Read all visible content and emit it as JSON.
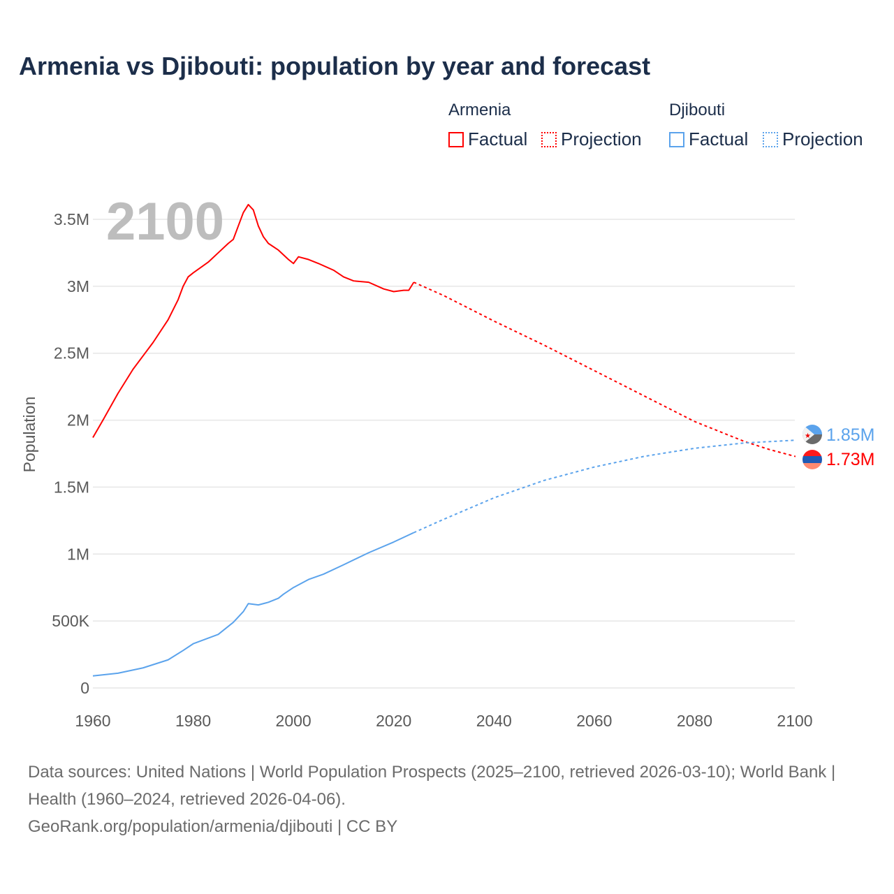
{
  "title": "Armenia vs Djibouti: population by year and forecast",
  "legend": {
    "groups": [
      {
        "name": "Armenia",
        "factual": "Factual",
        "projection": "Projection",
        "color": "#ff0000"
      },
      {
        "name": "Djibouti",
        "factual": "Factual",
        "projection": "Projection",
        "color": "#5ba3ec"
      }
    ]
  },
  "year_overlay": "2100",
  "end_labels": {
    "djibouti": "1.85M",
    "armenia": "1.73M"
  },
  "source": {
    "line1": "Data sources: United Nations | World Population Prospects (2025–2100, retrieved 2026-03-10); World Bank | Health (1960–2024, retrieved 2026-04-06).",
    "line2": "GeoRank.org/population/armenia/djibouti | CC BY"
  },
  "chart_data": {
    "type": "line",
    "title": "Armenia vs Djibouti: population by year and forecast",
    "xlabel": "",
    "ylabel": "Population",
    "xlim": [
      1960,
      2100
    ],
    "ylim": [
      0,
      3500000
    ],
    "xticks": [
      1960,
      1980,
      2000,
      2020,
      2040,
      2060,
      2080,
      2100
    ],
    "xtick_labels": [
      "1960",
      "1980",
      "2000",
      "2020",
      "2040",
      "2060",
      "2080",
      "2100"
    ],
    "yticks": [
      0,
      500000,
      1000000,
      1500000,
      2000000,
      2500000,
      3000000,
      3500000
    ],
    "ytick_labels": [
      "0",
      "500K",
      "1M",
      "1.5M",
      "2M",
      "2.5M",
      "3M",
      "3.5M"
    ],
    "grid": true,
    "legend_position": "top-right",
    "series": [
      {
        "name": "Armenia Factual",
        "style": "solid",
        "color": "#ff0000",
        "x": [
          1960,
          1962,
          1965,
          1968,
          1970,
          1972,
          1975,
          1977,
          1978,
          1979,
          1980,
          1983,
          1985,
          1987,
          1988,
          1989,
          1990,
          1991,
          1992,
          1993,
          1994,
          1995,
          1997,
          1999,
          2000,
          2001,
          2003,
          2005,
          2008,
          2010,
          2012,
          2015,
          2018,
          2020,
          2022,
          2023,
          2024
        ],
        "y": [
          1.87,
          2.0,
          2.2,
          2.38,
          2.48,
          2.58,
          2.75,
          2.9,
          3.0,
          3.07,
          3.1,
          3.18,
          3.25,
          3.32,
          3.35,
          3.45,
          3.55,
          3.61,
          3.57,
          3.45,
          3.37,
          3.32,
          3.27,
          3.2,
          3.17,
          3.22,
          3.2,
          3.17,
          3.12,
          3.07,
          3.04,
          3.03,
          2.98,
          2.96,
          2.97,
          2.97,
          3.03
        ]
      },
      {
        "name": "Armenia Projection",
        "style": "dotted",
        "color": "#ff0000",
        "x": [
          2024,
          2030,
          2040,
          2050,
          2060,
          2070,
          2080,
          2090,
          2095,
          2100
        ],
        "y": [
          3.03,
          2.93,
          2.74,
          2.56,
          2.37,
          2.18,
          1.99,
          1.84,
          1.78,
          1.73
        ]
      },
      {
        "name": "Djibouti Factual",
        "style": "solid",
        "color": "#5ba3ec",
        "x": [
          1960,
          1965,
          1970,
          1975,
          1978,
          1980,
          1985,
          1988,
          1990,
          1991,
          1993,
          1995,
          1997,
          1998,
          2000,
          2003,
          2006,
          2010,
          2015,
          2020,
          2024
        ],
        "y": [
          0.09,
          0.11,
          0.15,
          0.21,
          0.28,
          0.33,
          0.4,
          0.49,
          0.57,
          0.63,
          0.62,
          0.64,
          0.67,
          0.7,
          0.75,
          0.81,
          0.85,
          0.92,
          1.01,
          1.09,
          1.16
        ]
      },
      {
        "name": "Djibouti Projection",
        "style": "dotted",
        "color": "#5ba3ec",
        "x": [
          2024,
          2030,
          2040,
          2050,
          2060,
          2070,
          2080,
          2090,
          2100
        ],
        "y": [
          1.16,
          1.26,
          1.42,
          1.55,
          1.65,
          1.73,
          1.79,
          1.83,
          1.85
        ]
      }
    ],
    "y_unit": "millions"
  }
}
